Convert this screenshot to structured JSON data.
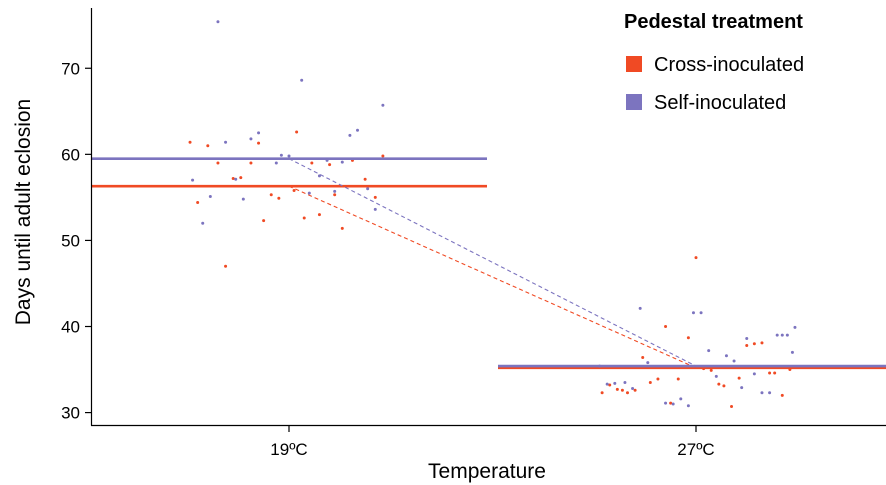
{
  "chart_data": {
    "type": "scatter",
    "title": "",
    "xlabel": "Temperature",
    "ylabel": "Days until adult eclosion",
    "categories": [
      "19ºC",
      "27ºC"
    ],
    "ylim": [
      28.5,
      77
    ],
    "yticks": [
      30,
      40,
      50,
      60,
      70
    ],
    "grid": false,
    "legend": {
      "title": "Pedestal treatment",
      "position": "top-right"
    },
    "series": [
      {
        "name": "Cross-inoculated",
        "color": "#f04a24",
        "means": [
          56.3,
          35.2
        ],
        "points": [
          {
            "cat": "19ºC",
            "dx": -0.39,
            "y": 61.4
          },
          {
            "cat": "19ºC",
            "dx": -0.36,
            "y": 54.4
          },
          {
            "cat": "19ºC",
            "dx": -0.32,
            "y": 61.0
          },
          {
            "cat": "19ºC",
            "dx": -0.28,
            "y": 59.0
          },
          {
            "cat": "19ºC",
            "dx": -0.25,
            "y": 47.0
          },
          {
            "cat": "19ºC",
            "dx": -0.22,
            "y": 57.2
          },
          {
            "cat": "19ºC",
            "dx": -0.19,
            "y": 57.3
          },
          {
            "cat": "19ºC",
            "dx": -0.15,
            "y": 59.0
          },
          {
            "cat": "19ºC",
            "dx": -0.12,
            "y": 61.3
          },
          {
            "cat": "19ºC",
            "dx": -0.1,
            "y": 52.3
          },
          {
            "cat": "19ºC",
            "dx": -0.07,
            "y": 55.3
          },
          {
            "cat": "19ºC",
            "dx": -0.04,
            "y": 54.9
          },
          {
            "cat": "19ºC",
            "dx": 0.02,
            "y": 55.8
          },
          {
            "cat": "19ºC",
            "dx": 0.03,
            "y": 62.6
          },
          {
            "cat": "19ºC",
            "dx": 0.06,
            "y": 52.6
          },
          {
            "cat": "19ºC",
            "dx": 0.09,
            "y": 59.0
          },
          {
            "cat": "19ºC",
            "dx": 0.12,
            "y": 53.0
          },
          {
            "cat": "19ºC",
            "dx": 0.16,
            "y": 58.8
          },
          {
            "cat": "19ºC",
            "dx": 0.18,
            "y": 55.3
          },
          {
            "cat": "19ºC",
            "dx": 0.21,
            "y": 51.4
          },
          {
            "cat": "19ºC",
            "dx": 0.25,
            "y": 59.3
          },
          {
            "cat": "19ºC",
            "dx": 0.3,
            "y": 57.1
          },
          {
            "cat": "19ºC",
            "dx": 0.34,
            "y": 55.0
          },
          {
            "cat": "19ºC",
            "dx": 0.37,
            "y": 59.8
          },
          {
            "cat": "27ºC",
            "dx": -0.37,
            "y": 32.3
          },
          {
            "cat": "27ºC",
            "dx": -0.34,
            "y": 33.2
          },
          {
            "cat": "27ºC",
            "dx": -0.31,
            "y": 32.7
          },
          {
            "cat": "27ºC",
            "dx": -0.29,
            "y": 32.6
          },
          {
            "cat": "27ºC",
            "dx": -0.27,
            "y": 32.3
          },
          {
            "cat": "27ºC",
            "dx": -0.24,
            "y": 32.6
          },
          {
            "cat": "27ºC",
            "dx": -0.21,
            "y": 36.4
          },
          {
            "cat": "27ºC",
            "dx": -0.18,
            "y": 33.5
          },
          {
            "cat": "27ºC",
            "dx": -0.15,
            "y": 33.9
          },
          {
            "cat": "27ºC",
            "dx": -0.12,
            "y": 40.0
          },
          {
            "cat": "27ºC",
            "dx": -0.1,
            "y": 31.1
          },
          {
            "cat": "27ºC",
            "dx": -0.07,
            "y": 33.9
          },
          {
            "cat": "27ºC",
            "dx": -0.03,
            "y": 38.7
          },
          {
            "cat": "27ºC",
            "dx": 0.0,
            "y": 48.0
          },
          {
            "cat": "27ºC",
            "dx": 0.03,
            "y": 35.1
          },
          {
            "cat": "27ºC",
            "dx": 0.06,
            "y": 34.9
          },
          {
            "cat": "27ºC",
            "dx": 0.09,
            "y": 33.3
          },
          {
            "cat": "27ºC",
            "dx": 0.11,
            "y": 33.1
          },
          {
            "cat": "27ºC",
            "dx": 0.14,
            "y": 30.7
          },
          {
            "cat": "27ºC",
            "dx": 0.17,
            "y": 34.0
          },
          {
            "cat": "27ºC",
            "dx": 0.2,
            "y": 37.8
          },
          {
            "cat": "27ºC",
            "dx": 0.23,
            "y": 38.0
          },
          {
            "cat": "27ºC",
            "dx": 0.26,
            "y": 38.1
          },
          {
            "cat": "27ºC",
            "dx": 0.29,
            "y": 34.6
          },
          {
            "cat": "27ºC",
            "dx": 0.31,
            "y": 34.6
          },
          {
            "cat": "27ºC",
            "dx": 0.34,
            "y": 32.0
          },
          {
            "cat": "27ºC",
            "dx": 0.37,
            "y": 35.0
          }
        ]
      },
      {
        "name": "Self-inoculated",
        "color": "#7c74bf",
        "means": [
          59.5,
          35.4
        ],
        "points": [
          {
            "cat": "19ºC",
            "dx": -0.38,
            "y": 57.0
          },
          {
            "cat": "19ºC",
            "dx": -0.34,
            "y": 52.0
          },
          {
            "cat": "19ºC",
            "dx": -0.31,
            "y": 55.1
          },
          {
            "cat": "19ºC",
            "dx": -0.28,
            "y": 75.4
          },
          {
            "cat": "19ºC",
            "dx": -0.25,
            "y": 61.4
          },
          {
            "cat": "19ºC",
            "dx": -0.21,
            "y": 57.1
          },
          {
            "cat": "19ºC",
            "dx": -0.18,
            "y": 54.8
          },
          {
            "cat": "19ºC",
            "dx": -0.15,
            "y": 61.8
          },
          {
            "cat": "19ºC",
            "dx": -0.12,
            "y": 62.5
          },
          {
            "cat": "19ºC",
            "dx": -0.05,
            "y": 59.0
          },
          {
            "cat": "19ºC",
            "dx": -0.03,
            "y": 59.9
          },
          {
            "cat": "19ºC",
            "dx": 0.0,
            "y": 59.8
          },
          {
            "cat": "19ºC",
            "dx": 0.05,
            "y": 68.6
          },
          {
            "cat": "19ºC",
            "dx": 0.08,
            "y": 55.5
          },
          {
            "cat": "19ºC",
            "dx": 0.12,
            "y": 57.5
          },
          {
            "cat": "19ºC",
            "dx": 0.15,
            "y": 59.3
          },
          {
            "cat": "19ºC",
            "dx": 0.18,
            "y": 55.7
          },
          {
            "cat": "19ºC",
            "dx": 0.21,
            "y": 59.1
          },
          {
            "cat": "19ºC",
            "dx": 0.24,
            "y": 62.2
          },
          {
            "cat": "19ºC",
            "dx": 0.27,
            "y": 62.8
          },
          {
            "cat": "19ºC",
            "dx": 0.31,
            "y": 56.0
          },
          {
            "cat": "19ºC",
            "dx": 0.34,
            "y": 53.6
          },
          {
            "cat": "19ºC",
            "dx": 0.37,
            "y": 65.7
          },
          {
            "cat": "27ºC",
            "dx": -0.38,
            "y": 35.4
          },
          {
            "cat": "27ºC",
            "dx": -0.35,
            "y": 33.3
          },
          {
            "cat": "27ºC",
            "dx": -0.32,
            "y": 33.4
          },
          {
            "cat": "27ºC",
            "dx": -0.28,
            "y": 33.5
          },
          {
            "cat": "27ºC",
            "dx": -0.25,
            "y": 32.8
          },
          {
            "cat": "27ºC",
            "dx": -0.22,
            "y": 42.1
          },
          {
            "cat": "27ºC",
            "dx": -0.19,
            "y": 35.8
          },
          {
            "cat": "27ºC",
            "dx": -0.12,
            "y": 31.1
          },
          {
            "cat": "27ºC",
            "dx": -0.09,
            "y": 31.0
          },
          {
            "cat": "27ºC",
            "dx": -0.06,
            "y": 31.6
          },
          {
            "cat": "27ºC",
            "dx": -0.03,
            "y": 30.8
          },
          {
            "cat": "27ºC",
            "dx": -0.01,
            "y": 41.6
          },
          {
            "cat": "27ºC",
            "dx": 0.02,
            "y": 41.6
          },
          {
            "cat": "27ºC",
            "dx": 0.05,
            "y": 37.2
          },
          {
            "cat": "27ºC",
            "dx": 0.08,
            "y": 34.2
          },
          {
            "cat": "27ºC",
            "dx": 0.12,
            "y": 36.6
          },
          {
            "cat": "27ºC",
            "dx": 0.15,
            "y": 36.0
          },
          {
            "cat": "27ºC",
            "dx": 0.18,
            "y": 32.9
          },
          {
            "cat": "27ºC",
            "dx": 0.2,
            "y": 38.6
          },
          {
            "cat": "27ºC",
            "dx": 0.23,
            "y": 34.5
          },
          {
            "cat": "27ºC",
            "dx": 0.26,
            "y": 32.3
          },
          {
            "cat": "27ºC",
            "dx": 0.29,
            "y": 32.3
          },
          {
            "cat": "27ºC",
            "dx": 0.32,
            "y": 39.0
          },
          {
            "cat": "27ºC",
            "dx": 0.34,
            "y": 39.0
          },
          {
            "cat": "27ºC",
            "dx": 0.36,
            "y": 39.0
          },
          {
            "cat": "27ºC",
            "dx": 0.38,
            "y": 37.0
          },
          {
            "cat": "27ºC",
            "dx": 0.39,
            "y": 39.9
          }
        ]
      }
    ]
  }
}
